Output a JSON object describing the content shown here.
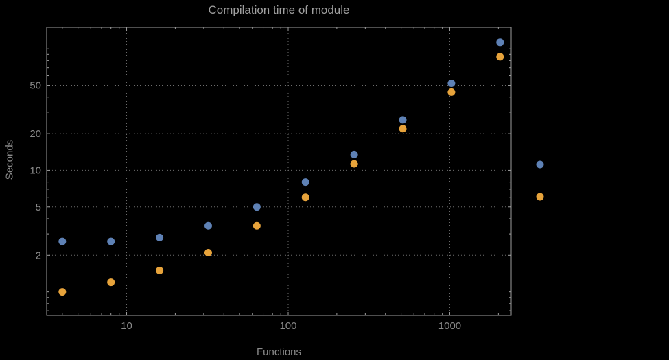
{
  "chart_data": {
    "type": "scatter",
    "title": "Compilation time of module",
    "xlabel": "Functions",
    "ylabel": "Seconds",
    "xscale": "log",
    "yscale": "log",
    "xlim": [
      3.2,
      2400
    ],
    "ylim": [
      0.64,
      150
    ],
    "x_ticks": [
      10,
      100,
      1000
    ],
    "y_ticks": [
      2,
      5,
      10,
      20,
      50
    ],
    "grid": "dotted",
    "x": [
      4,
      8,
      16,
      32,
      64,
      128,
      256,
      512,
      1024,
      2048
    ],
    "series": [
      {
        "name": "series-blue",
        "color": "#5e81b5",
        "values": [
          2.6,
          2.6,
          2.8,
          3.5,
          5.0,
          8.0,
          13.5,
          26,
          52,
          113
        ]
      },
      {
        "name": "series-orange",
        "color": "#e7a33b",
        "values": [
          1.0,
          1.2,
          1.5,
          2.1,
          3.5,
          6.0,
          11.3,
          22,
          44,
          86
        ]
      }
    ],
    "legend": {
      "position": "right-outside",
      "markers": [
        {
          "series": "series-blue",
          "color": "#5e81b5"
        },
        {
          "series": "series-orange",
          "color": "#e7a33b"
        }
      ]
    }
  },
  "colors": {
    "background": "#000000",
    "frame": "#9e9e9e",
    "grid": "#6e6e6e",
    "tick_text": "#8a8a8a",
    "axis_label_text": "#8a8a8a",
    "title_text": "#a0a0a0"
  }
}
